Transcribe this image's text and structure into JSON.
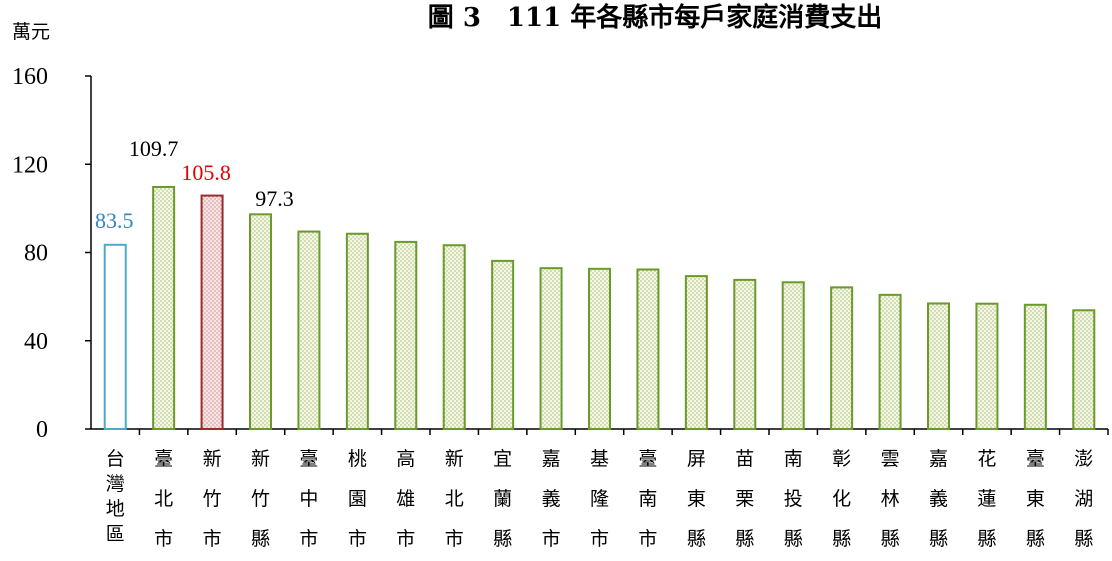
{
  "chart_data": {
    "type": "bar",
    "title": "圖 3　111 年各縣市每戶家庭消費支出",
    "ylabel": "萬元",
    "ylim": [
      0,
      160
    ],
    "yticks": [
      0,
      40,
      80,
      120,
      160
    ],
    "grid": false,
    "categories": [
      "台灣地區",
      "臺北市",
      "新竹市",
      "新竹縣",
      "臺中市",
      "桃園市",
      "高雄市",
      "新北市",
      "宜蘭縣",
      "嘉義市",
      "基隆市",
      "臺南市",
      "屏東縣",
      "苗栗縣",
      "南投縣",
      "彰化縣",
      "雲林縣",
      "嘉義縣",
      "花蓮縣",
      "臺東縣",
      "澎湖縣"
    ],
    "values": [
      83.5,
      109.7,
      105.8,
      97.3,
      89.5,
      88.5,
      84.8,
      83.3,
      76.2,
      72.9,
      72.6,
      72.3,
      69.3,
      67.6,
      66.5,
      64.2,
      60.8,
      56.9,
      56.8,
      56.3,
      53.8
    ],
    "data_labels": [
      {
        "index": 0,
        "text": "83.5",
        "color": "#2e86c1"
      },
      {
        "index": 1,
        "text": "109.7",
        "color": "#000000"
      },
      {
        "index": 2,
        "text": "105.8",
        "color": "#e00000"
      },
      {
        "index": 3,
        "text": "97.3",
        "color": "#000000"
      }
    ],
    "colors": {
      "default_outline": "#6a9a2a",
      "default_fill": "#eef2da",
      "highlight_taiwan_outline": "#4bacc6",
      "highlight_taiwan_fill": "#ffffff",
      "highlight_hsinchu_outline": "#9b2c2c",
      "highlight_hsinchu_fill": "#f6dede",
      "axis": "#000000"
    }
  }
}
